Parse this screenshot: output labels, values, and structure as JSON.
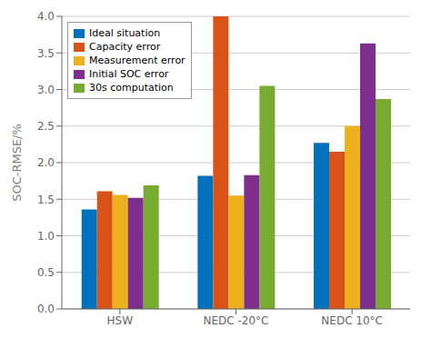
{
  "chart_data": {
    "type": "bar",
    "ylabel": "SOC-RMSE/%",
    "categories": [
      "HSW",
      "NEDC -20°C",
      "NEDC 10°C"
    ],
    "series": [
      {
        "name": "Ideal situation",
        "color": "#0072bd",
        "values": [
          1.36,
          1.82,
          2.27
        ]
      },
      {
        "name": "Capacity error",
        "color": "#d95319",
        "values": [
          1.61,
          4.0,
          2.15
        ]
      },
      {
        "name": "Measurement error",
        "color": "#edb120",
        "values": [
          1.56,
          1.55,
          2.5
        ]
      },
      {
        "name": "Initial SOC error",
        "color": "#7e2f8e",
        "values": [
          1.52,
          1.83,
          3.63
        ]
      },
      {
        "name": "30s computation",
        "color": "#77ac30",
        "values": [
          1.69,
          3.05,
          2.87
        ]
      }
    ],
    "ylim": [
      0,
      4.0
    ],
    "yticks": [
      {
        "value": 0,
        "label": "0.0"
      },
      0.5,
      {
        "value": 1.0,
        "label": "1.0"
      },
      1.5,
      {
        "value": 2.0,
        "label": "2.0"
      },
      2.5,
      {
        "value": 3.0,
        "label": "3.0"
      },
      3.5,
      {
        "value": 4.0,
        "label": "4.0"
      }
    ],
    "grid": true,
    "legend": "upper left"
  }
}
